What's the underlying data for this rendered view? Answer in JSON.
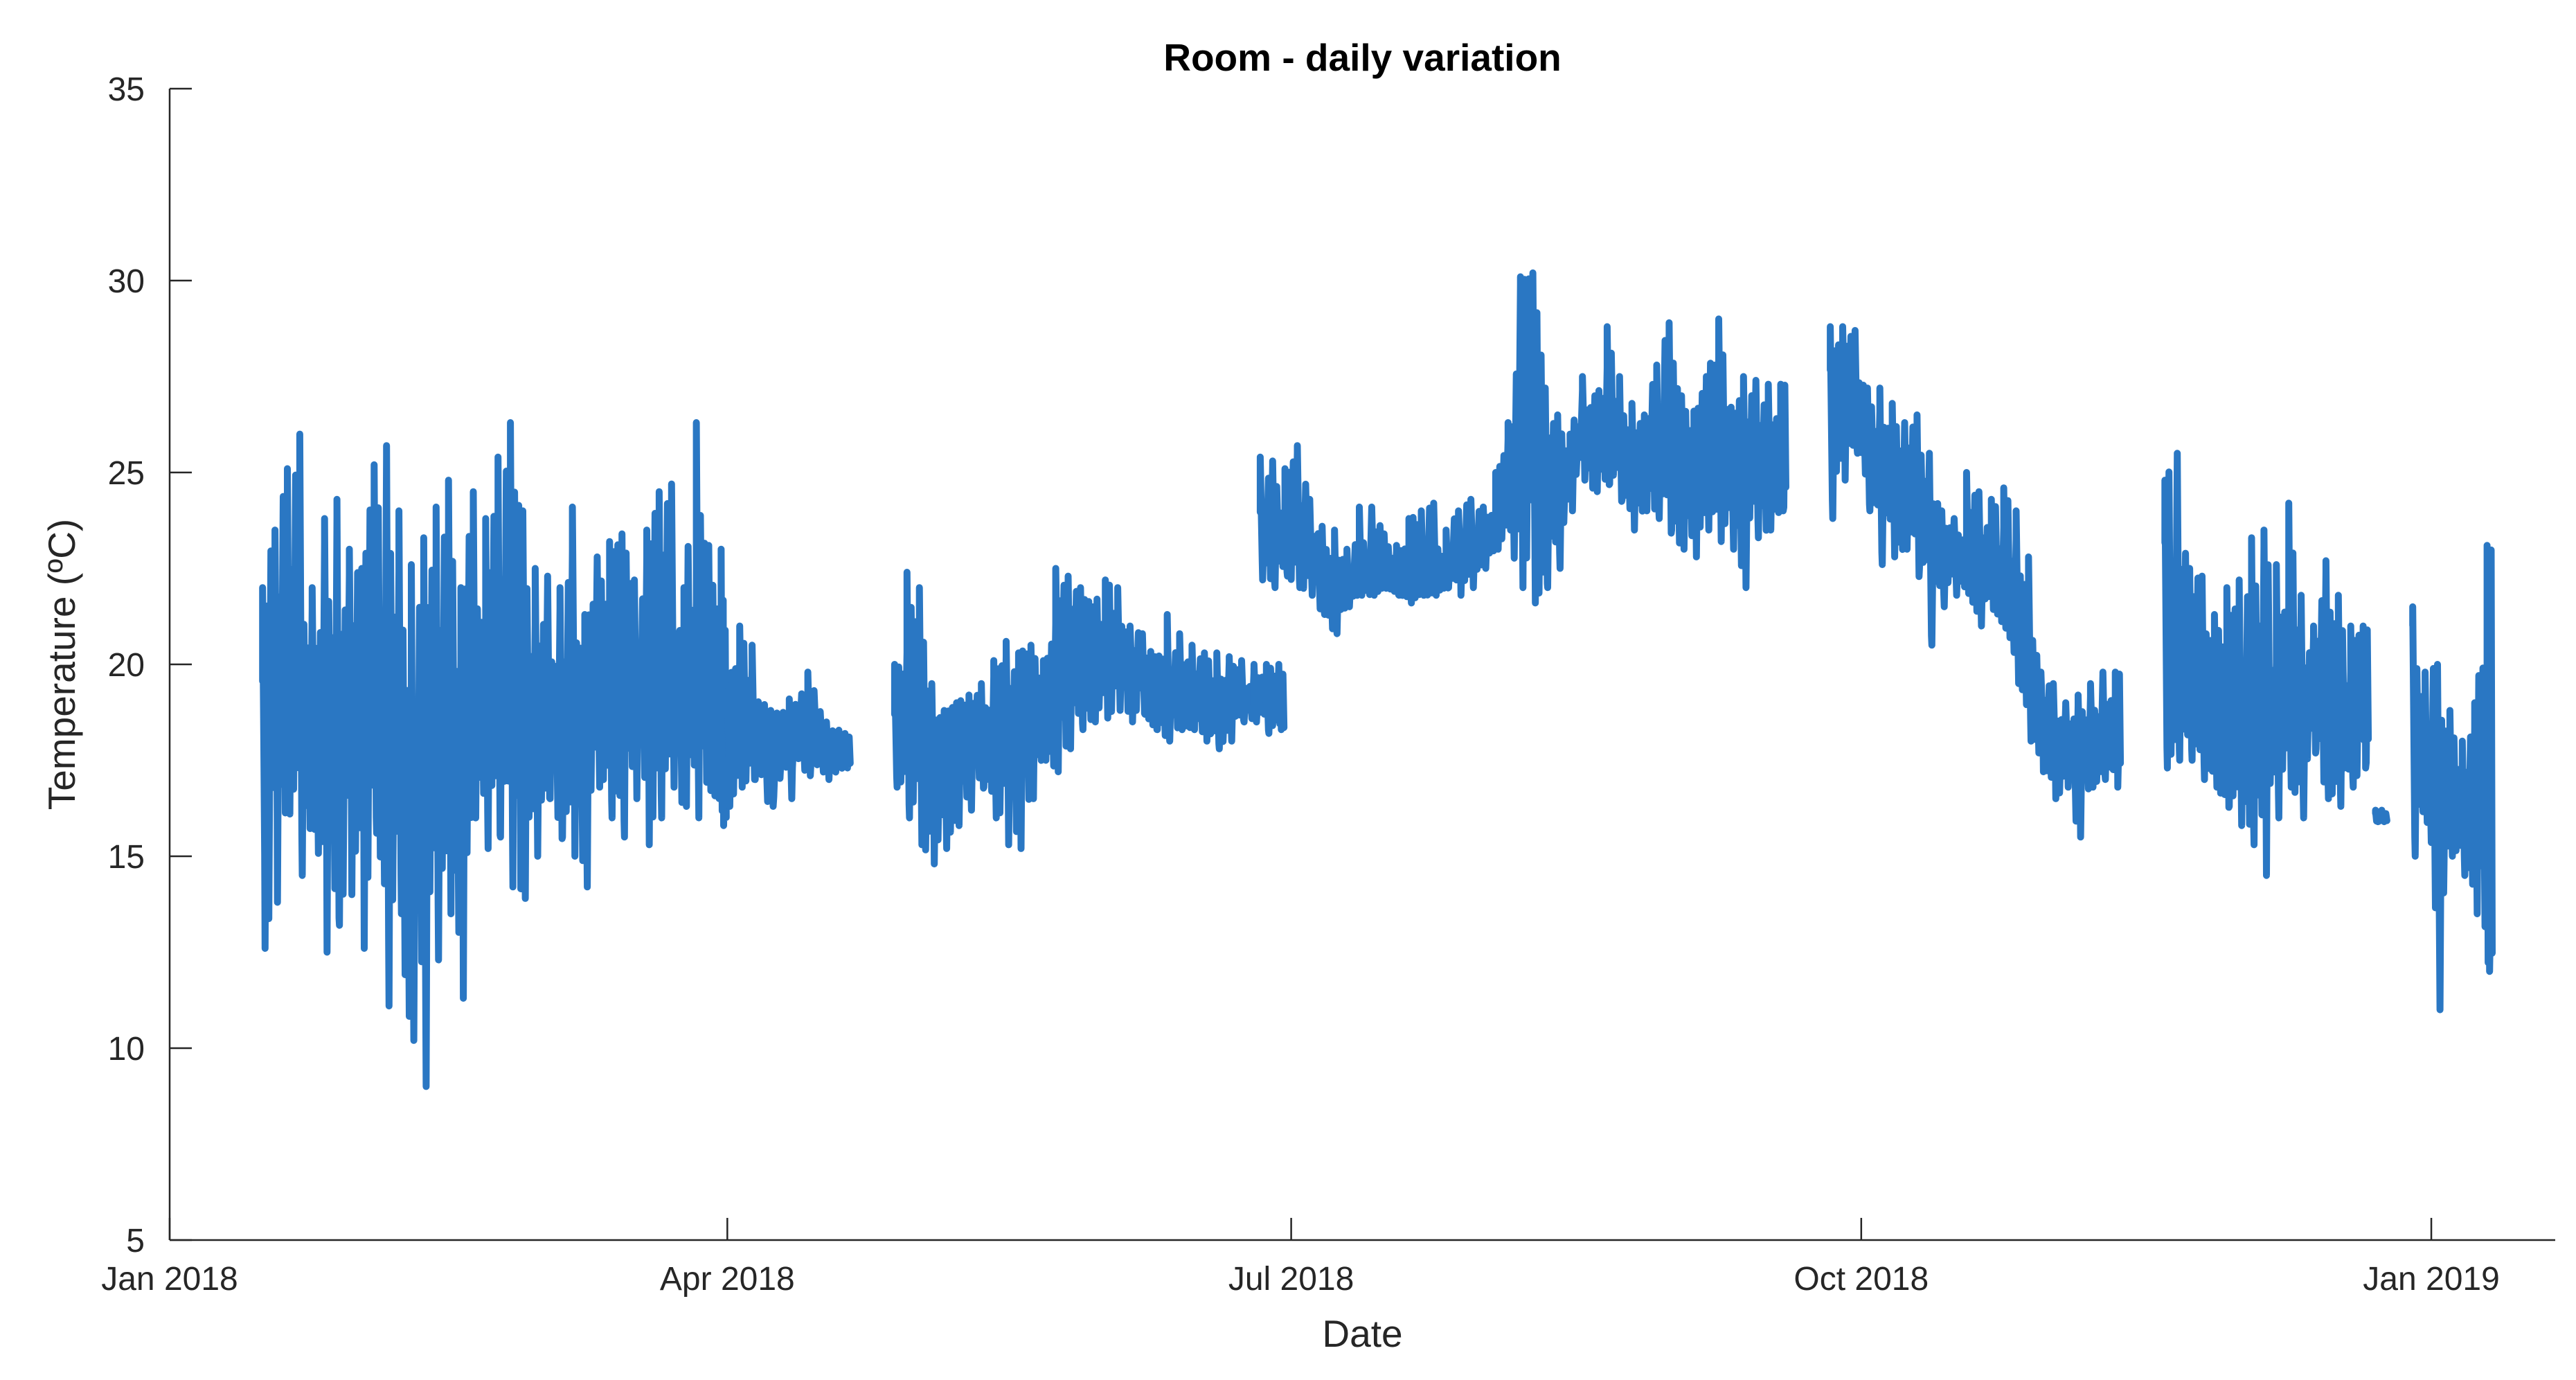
{
  "chart_data": {
    "type": "line",
    "title": "Room - daily variation",
    "xlabel": "Date",
    "ylabel": "Temperature (ºC)",
    "xlim": [
      "2018-01-01",
      "2019-01-21"
    ],
    "ylim": [
      5,
      35
    ],
    "x_ticks": [
      {
        "date": "2018-01-01",
        "label": "Jan 2018"
      },
      {
        "date": "2018-04-01",
        "label": "Apr 2018"
      },
      {
        "date": "2018-07-01",
        "label": "Jul 2018"
      },
      {
        "date": "2018-10-01",
        "label": "Oct 2018"
      },
      {
        "date": "2019-01-01",
        "label": "Jan 2019"
      }
    ],
    "y_ticks": [
      5,
      10,
      15,
      20,
      25,
      30,
      35
    ],
    "grid": false,
    "color": "#2a77c3",
    "note": "Dense sub-daily temperature trace; each entry gives the daily range (min, max) and a typical value.",
    "series": [
      {
        "segments": [
          {
            "x": [
              "2018-01-16",
              "2018-01-18",
              "2018-01-20",
              "2018-01-22",
              "2018-01-24",
              "2018-01-26",
              "2018-01-28",
              "2018-01-30",
              "2018-02-01",
              "2018-02-03",
              "2018-02-05",
              "2018-02-07",
              "2018-02-09",
              "2018-02-11",
              "2018-02-13",
              "2018-02-15",
              "2018-02-17",
              "2018-02-19",
              "2018-02-21",
              "2018-02-23",
              "2018-02-25",
              "2018-02-27",
              "2018-03-01",
              "2018-03-03",
              "2018-03-05",
              "2018-03-07",
              "2018-03-09",
              "2018-03-11",
              "2018-03-13",
              "2018-03-15",
              "2018-03-17",
              "2018-03-19",
              "2018-03-21",
              "2018-03-23",
              "2018-03-25",
              "2018-03-27",
              "2018-03-29",
              "2018-03-31"
            ],
            "min": [
              12.6,
              13.8,
              16.1,
              14.5,
              15.7,
              12.5,
              13.2,
              14.0,
              12.6,
              15.6,
              11.1,
              13.5,
              10.2,
              9.0,
              12.3,
              13.5,
              11.3,
              16.0,
              15.2,
              15.5,
              14.2,
              13.9,
              15.0,
              16.5,
              15.5,
              15.0,
              14.2,
              16.8,
              16.0,
              15.5,
              16.5,
              15.3,
              16.0,
              16.8,
              16.3,
              16.0,
              16.8,
              15.8
            ],
            "max": [
              22.0,
              23.5,
              25.1,
              26.0,
              22.0,
              23.8,
              24.3,
              23.0,
              22.5,
              25.2,
              25.7,
              24.0,
              22.6,
              23.3,
              24.1,
              24.8,
              22.0,
              24.5,
              23.8,
              25.4,
              26.3,
              24.0,
              22.5,
              22.3,
              22.0,
              24.1,
              21.3,
              22.8,
              23.2,
              23.4,
              22.2,
              23.5,
              24.5,
              24.7,
              22.0,
              26.3,
              23.1,
              23.0
            ],
            "typical": [
              18,
              19,
              18,
              19,
              18,
              18,
              19,
              19,
              17,
              18,
              18,
              18,
              16,
              17,
              18,
              18,
              18,
              18,
              18,
              19,
              19,
              19,
              18,
              19,
              18,
              19,
              19,
              19,
              19,
              19,
              19,
              20,
              19,
              19,
              19,
              19,
              19,
              18
            ]
          },
          {
            "x": [
              "2018-04-01",
              "2018-04-03",
              "2018-04-05",
              "2018-04-08",
              "2018-04-11",
              "2018-04-14",
              "2018-04-17",
              "2018-04-20"
            ],
            "min": [
              16.3,
              16.8,
              17.0,
              16.3,
              16.5,
              17.1,
              17.0,
              17.3
            ],
            "max": [
              19.3,
              21.0,
              20.5,
              18.8,
              19.1,
              19.8,
              18.5,
              18.2
            ],
            "typical": [
              18,
              19,
              18,
              17,
              18,
              18,
              18,
              18
            ]
          },
          {
            "x": [
              "2018-04-28",
              "2018-04-30",
              "2018-05-02",
              "2018-05-04",
              "2018-05-06",
              "2018-05-08",
              "2018-05-10",
              "2018-05-12",
              "2018-05-14",
              "2018-05-16",
              "2018-05-18",
              "2018-05-20",
              "2018-05-22",
              "2018-05-24",
              "2018-05-26",
              "2018-05-28",
              "2018-05-30",
              "2018-06-01",
              "2018-06-03",
              "2018-06-05",
              "2018-06-07",
              "2018-06-09",
              "2018-06-11",
              "2018-06-13",
              "2018-06-15",
              "2018-06-17",
              "2018-06-19",
              "2018-06-21",
              "2018-06-23",
              "2018-06-25",
              "2018-06-27",
              "2018-06-29"
            ],
            "min": [
              16.8,
              16.0,
              15.3,
              14.8,
              15.2,
              15.8,
              16.2,
              16.8,
              16.0,
              15.3,
              15.2,
              16.5,
              17.5,
              17.2,
              17.8,
              18.3,
              18.5,
              18.6,
              18.8,
              18.5,
              18.7,
              18.3,
              18.0,
              18.3,
              18.3,
              18.0,
              17.8,
              18.0,
              18.5,
              18.5,
              18.2,
              18.3
            ],
            "max": [
              20.0,
              22.4,
              22.0,
              19.5,
              18.8,
              19.0,
              19.2,
              19.5,
              20.1,
              20.6,
              20.3,
              20.5,
              20.1,
              22.5,
              22.3,
              22.0,
              21.5,
              22.2,
              22.0,
              21.0,
              20.8,
              20.2,
              21.3,
              20.8,
              20.5,
              20.3,
              20.3,
              20.2,
              20.1,
              20.0,
              20.0,
              20.0
            ],
            "typical": [
              18,
              19,
              18,
              17,
              17,
              17,
              18,
              18,
              18,
              18,
              18,
              19,
              19,
              20,
              20,
              20,
              20,
              20,
              20,
              20,
              20,
              19,
              19,
              19,
              19,
              19,
              19,
              19,
              19,
              19,
              19,
              19
            ]
          },
          {
            "x": [
              "2018-06-25",
              "2018-06-25"
            ],
            "min": [
              18.8,
              18.8
            ],
            "max": [
              19.9,
              19.9
            ],
            "typical": [
              19.3,
              19.3
            ]
          },
          {
            "x": [
              "2018-06-26",
              "2018-06-28",
              "2018-06-30",
              "2018-07-02",
              "2018-07-04",
              "2018-07-06",
              "2018-07-08",
              "2018-07-10",
              "2018-07-12",
              "2018-07-14",
              "2018-07-16",
              "2018-07-18",
              "2018-07-20",
              "2018-07-22",
              "2018-07-24",
              "2018-07-26",
              "2018-07-28",
              "2018-07-30",
              "2018-08-01",
              "2018-08-03",
              "2018-08-05",
              "2018-08-07",
              "2018-08-09",
              "2018-08-11",
              "2018-08-13",
              "2018-08-15",
              "2018-08-17",
              "2018-08-19",
              "2018-08-21",
              "2018-08-23",
              "2018-08-25",
              "2018-08-27",
              "2018-08-29",
              "2018-08-31",
              "2018-09-02",
              "2018-09-04",
              "2018-09-06",
              "2018-09-08",
              "2018-09-10",
              "2018-09-12",
              "2018-09-14",
              "2018-09-16",
              "2018-09-18"
            ],
            "min": [
              22.2,
              22.0,
              22.3,
              22.0,
              21.8,
              21.3,
              20.8,
              21.5,
              21.8,
              21.8,
              22.0,
              21.8,
              21.6,
              21.8,
              21.8,
              22.0,
              21.8,
              22.0,
              22.5,
              23.0,
              23.5,
              22.0,
              21.6,
              22.0,
              22.5,
              24.0,
              24.8,
              24.5,
              24.7,
              24.3,
              23.5,
              24.0,
              23.8,
              23.5,
              23.0,
              22.8,
              23.5,
              23.2,
              23.0,
              22.0,
              23.3,
              23.5,
              24.0
            ],
            "max": [
              25.4,
              25.3,
              25.1,
              25.7,
              24.3,
              23.6,
              23.5,
              23.0,
              24.1,
              24.1,
              23.4,
              23.1,
              23.8,
              24.0,
              24.2,
              23.5,
              24.0,
              24.3,
              24.1,
              25.0,
              26.3,
              30.1,
              30.2,
              27.2,
              26.5,
              26.0,
              27.5,
              27.0,
              28.8,
              27.5,
              26.8,
              26.5,
              27.8,
              28.9,
              27.0,
              26.6,
              27.5,
              29.0,
              26.7,
              27.5,
              27.4,
              27.3,
              27.3
            ],
            "typical": [
              23,
              23,
              23,
              23,
              23,
              22,
              22,
              22,
              22,
              22,
              22,
              22,
              22,
              22,
              22,
              22,
              23,
              23,
              23,
              23,
              24,
              28,
              27,
              24,
              24,
              25,
              26,
              25,
              26,
              26,
              25,
              25,
              25,
              26,
              25,
              25,
              26,
              26,
              25,
              25,
              25,
              25,
              25
            ]
          },
          {
            "x": [
              "2018-09-26",
              "2018-09-28",
              "2018-09-30",
              "2018-10-02",
              "2018-10-04",
              "2018-10-06",
              "2018-10-08",
              "2018-10-10",
              "2018-10-12",
              "2018-10-14",
              "2018-10-16",
              "2018-10-18",
              "2018-10-20",
              "2018-10-22",
              "2018-10-24",
              "2018-10-26",
              "2018-10-28",
              "2018-10-30",
              "2018-11-01",
              "2018-11-03",
              "2018-11-05",
              "2018-11-07",
              "2018-11-09",
              "2018-11-11"
            ],
            "min": [
              23.8,
              24.8,
              25.5,
              24.0,
              22.6,
              22.8,
              23.0,
              22.5,
              20.5,
              21.5,
              21.8,
              22.0,
              21.0,
              21.5,
              21.0,
              19.5,
              18.0,
              17.2,
              16.5,
              16.8,
              15.5,
              16.8,
              17.0,
              16.8
            ],
            "max": [
              28.8,
              28.8,
              28.7,
              27.2,
              27.2,
              26.8,
              26.3,
              26.5,
              25.5,
              24.0,
              23.8,
              25.0,
              24.5,
              24.3,
              24.6,
              24.0,
              22.8,
              19.8,
              19.5,
              19.0,
              19.2,
              19.5,
              19.8,
              19.8
            ],
            "typical": [
              27,
              27,
              27,
              26,
              25,
              25,
              24,
              24,
              24,
              23,
              23,
              22,
              22,
              22,
              22,
              21,
              20,
              19,
              18,
              18,
              18,
              18,
              18,
              18
            ]
          },
          {
            "x": [
              "2018-11-19",
              "2018-11-21",
              "2018-11-23",
              "2018-11-25",
              "2018-11-27",
              "2018-11-29",
              "2018-12-01",
              "2018-12-03",
              "2018-12-05",
              "2018-12-07",
              "2018-12-09",
              "2018-12-11",
              "2018-12-13",
              "2018-12-15",
              "2018-12-17",
              "2018-12-19",
              "2018-12-21"
            ],
            "min": [
              17.3,
              17.5,
              17.5,
              17.0,
              16.8,
              16.3,
              15.8,
              15.3,
              14.5,
              16.0,
              16.8,
              16.0,
              17.8,
              16.5,
              16.3,
              16.8,
              17.3
            ],
            "max": [
              24.8,
              25.5,
              22.5,
              22.3,
              21.3,
              22.0,
              22.2,
              23.3,
              23.5,
              22.6,
              24.2,
              21.8,
              21.0,
              22.7,
              21.8,
              21.0,
              21.0
            ],
            "typical": [
              19,
              19,
              19,
              19,
              18,
              18,
              18,
              18,
              18,
              18,
              19,
              18,
              19,
              19,
              18,
              18,
              19
            ]
          },
          {
            "x": [
              "2018-12-23",
              "2018-12-24"
            ],
            "min": [
              15.9,
              15.9
            ],
            "max": [
              16.2,
              16.2
            ],
            "typical": [
              16.0,
              16.0
            ]
          },
          {
            "x": [
              "2018-12-29",
              "2018-12-31",
              "2019-01-02",
              "2019-01-04",
              "2019-01-06",
              "2019-01-08",
              "2019-01-10"
            ],
            "min": [
              15.0,
              16.3,
              11.0,
              15.0,
              14.5,
              13.5,
              12.0
            ],
            "max": [
              21.5,
              19.8,
              20.0,
              18.8,
              18.0,
              19.0,
              23.1
            ],
            "typical": [
              17,
              17,
              17,
              16,
              16,
              16,
              17
            ]
          }
        ]
      }
    ]
  }
}
